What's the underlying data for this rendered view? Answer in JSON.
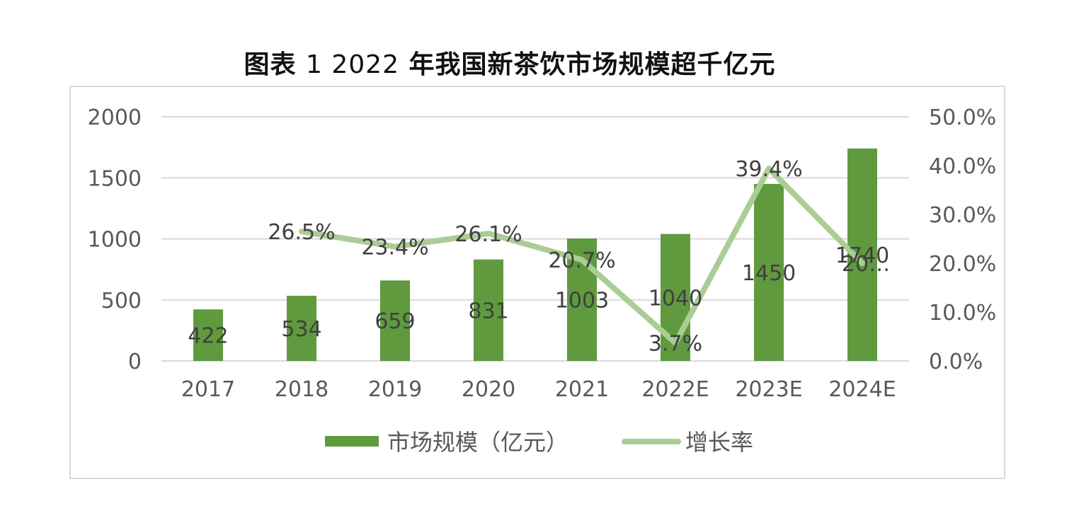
{
  "title": {
    "prefix": "图表",
    "number": "1 2022",
    "rest": "年我国新茶饮市场规模超千亿元"
  },
  "chart_data": {
    "type": "bar",
    "categories": [
      "2017",
      "2018",
      "2019",
      "2020",
      "2021",
      "2022E",
      "2023E",
      "2024E"
    ],
    "series": [
      {
        "name": "市场规模（亿元）",
        "type": "bar",
        "axis": "left",
        "color": "#5f9a3e",
        "values": [
          422,
          534,
          659,
          831,
          1003,
          1040,
          1450,
          1740
        ],
        "labels": [
          "422",
          "534",
          "659",
          "831",
          "1003",
          "1040",
          "1450",
          "1740"
        ]
      },
      {
        "name": "增长率",
        "type": "line",
        "axis": "right",
        "color": "#a9cd94",
        "values": [
          null,
          26.5,
          23.4,
          26.1,
          20.7,
          3.7,
          39.4,
          20.0
        ],
        "labels": [
          "",
          "26.5%",
          "23.4%",
          "26.1%",
          "20.7%",
          "3.7%",
          "39.4%",
          "20…"
        ]
      }
    ],
    "y_left": {
      "min": 0,
      "max": 2000,
      "ticks": [
        "0",
        "500",
        "1000",
        "1500",
        "2000"
      ]
    },
    "y_right": {
      "min": 0,
      "max": 50,
      "ticks": [
        "0.0%",
        "10.0%",
        "20.0%",
        "30.0%",
        "40.0%",
        "50.0%"
      ]
    },
    "grid": true,
    "legend_position": "bottom"
  }
}
